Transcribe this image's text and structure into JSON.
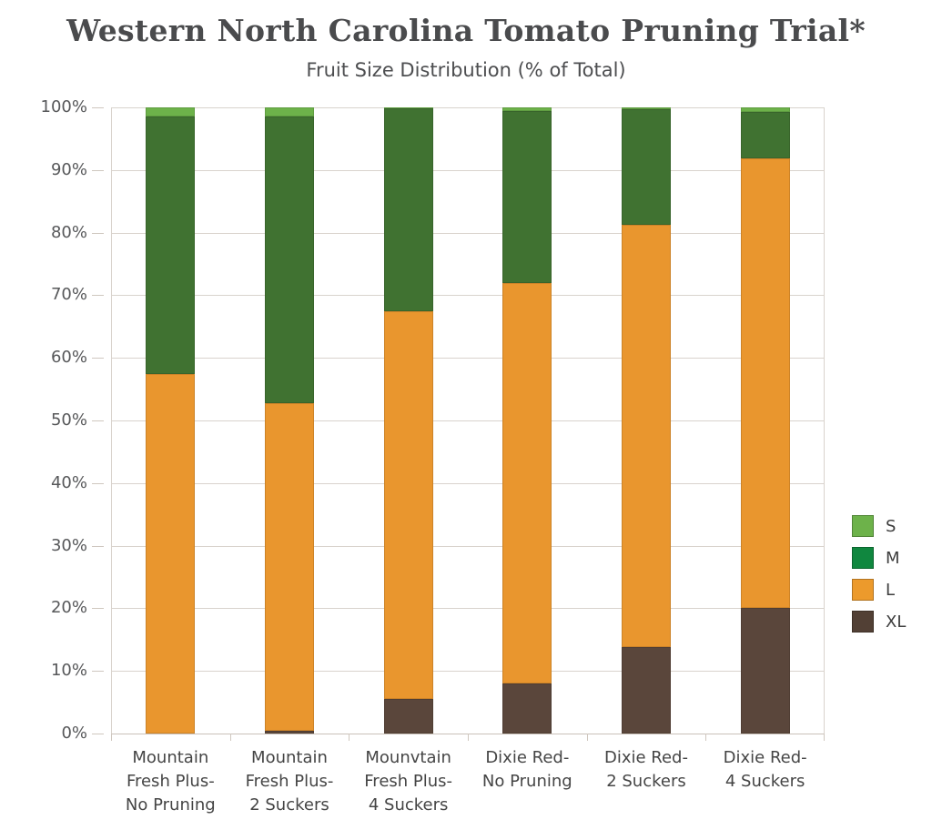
{
  "chart": {
    "title": "Western North Carolina Tomato Pruning Trial*",
    "subtitle": "Fruit Size Distribution (% of Total)"
  },
  "chart_data": {
    "type": "bar",
    "variant": "stacked-percent-column",
    "title": "Western North Carolina Tomato Pruning Trial*",
    "subtitle": "Fruit Size Distribution (% of Total)",
    "categories": [
      [
        "Mountain",
        "Fresh Plus-",
        "No Pruning"
      ],
      [
        "Mountain",
        "Fresh Plus-",
        "2 Suckers"
      ],
      [
        "Mounvtain",
        "Fresh Plus-",
        "4 Suckers"
      ],
      [
        "Dixie Red-",
        "No Pruning"
      ],
      [
        "Dixie Red-",
        "2 Suckers"
      ],
      [
        "Dixie Red-",
        "4 Suckers"
      ]
    ],
    "series": [
      {
        "name": "S",
        "color": "#6db24a",
        "legend_color": "#6db24a",
        "values": [
          1.5,
          1.5,
          0.1,
          0.6,
          0.3,
          0.7
        ]
      },
      {
        "name": "M",
        "color": "#407231",
        "legend_color": "#10873f",
        "values": [
          41.1,
          45.8,
          32.4,
          27.4,
          18.4,
          7.5
        ]
      },
      {
        "name": "L",
        "color": "#e9962e",
        "legend_color": "#ec9a2c",
        "values": [
          57.4,
          52.3,
          62.0,
          64.0,
          67.5,
          71.8
        ]
      },
      {
        "name": "XL",
        "color": "#5a463b",
        "legend_color": "#524035",
        "values": [
          0,
          0.4,
          5.5,
          8.0,
          13.8,
          20.0
        ]
      }
    ],
    "stack_order_bottom_to_top": [
      "XL",
      "L",
      "M",
      "S"
    ],
    "legend_order": [
      "S",
      "M",
      "L",
      "XL"
    ],
    "legend_position": "right",
    "y_ticks": [
      "100%",
      "90%",
      "80%",
      "70%",
      "60%",
      "50%",
      "40%",
      "30%",
      "20%",
      "10%",
      "0%"
    ],
    "ylim": [
      0,
      100
    ],
    "xlabel": "",
    "ylabel": "",
    "grid": "horizontal"
  },
  "colors": {
    "background": "#ffffff",
    "gridline": "#d9d3cd",
    "axis_line": "#c9c1b9",
    "title_text": "#4a4b4d",
    "subtitle_text": "#4d4e50",
    "y_tick_text": "#57585a",
    "x_label_text": "#454545",
    "legend_text": "#3d3d3d"
  }
}
